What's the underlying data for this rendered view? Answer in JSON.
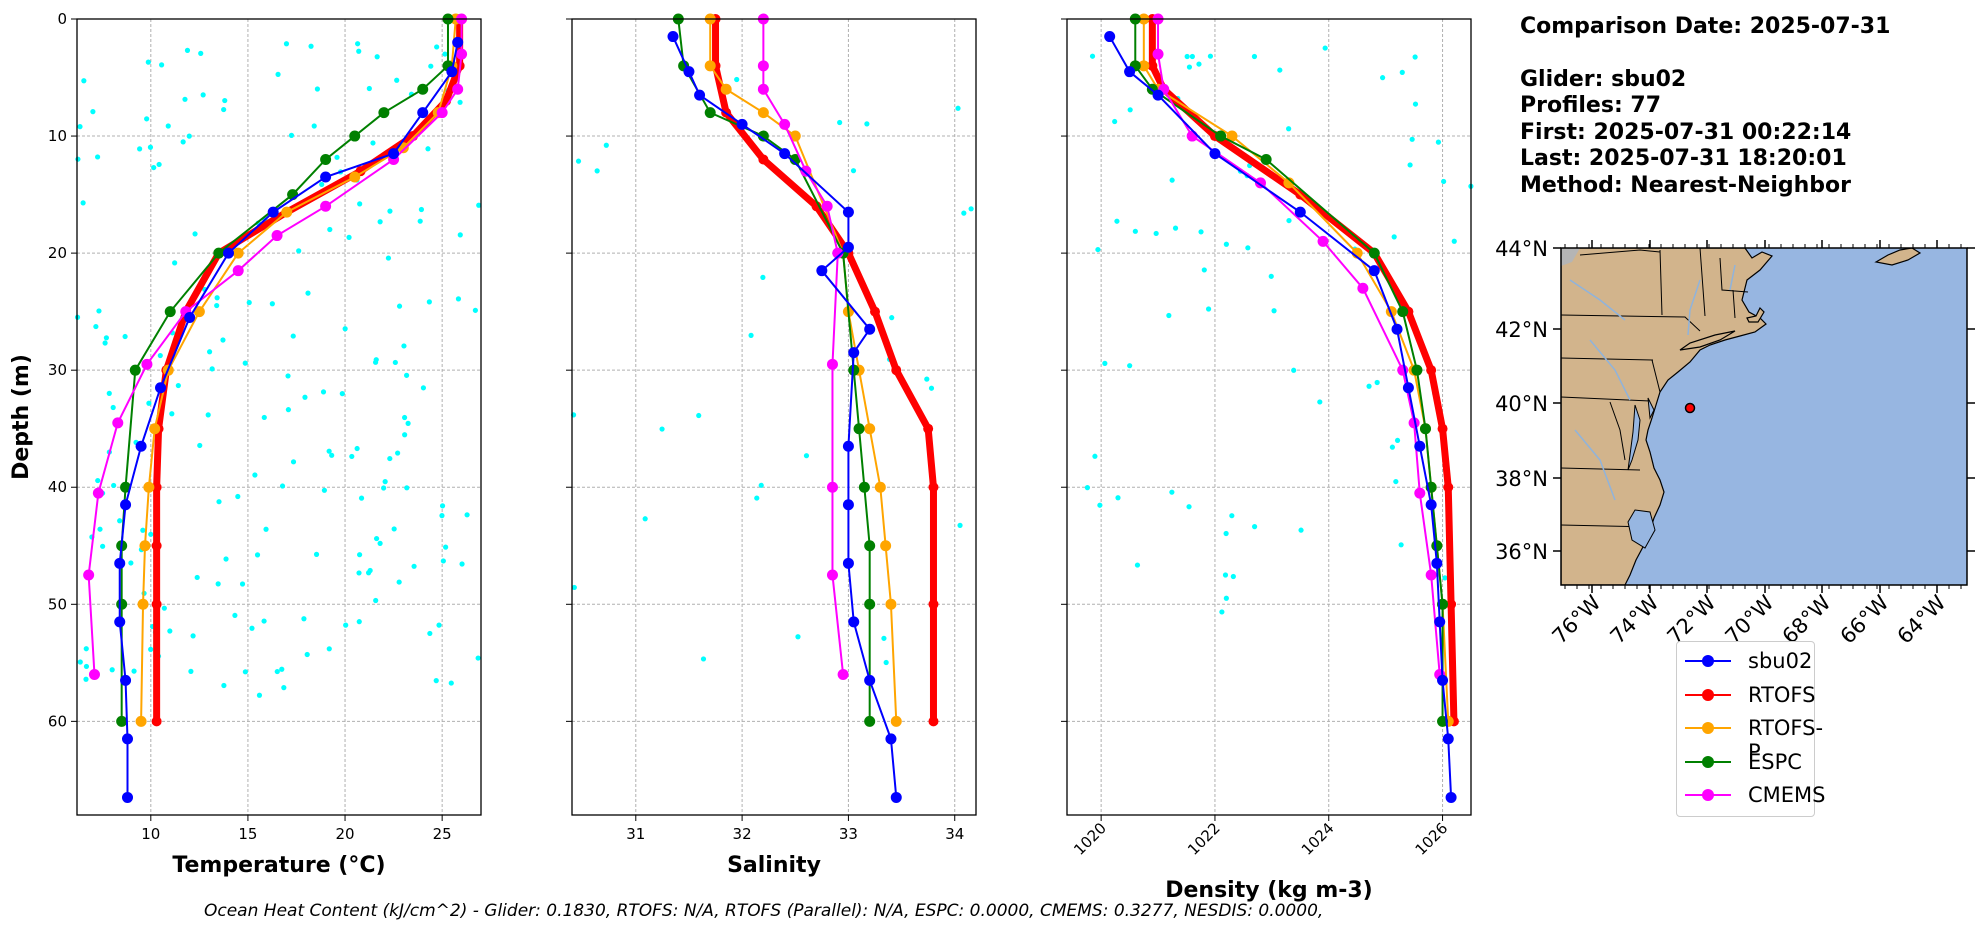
{
  "info": {
    "comparison_date": "Comparison Date: 2025-07-31",
    "glider": "Glider: sbu02",
    "profiles": "Profiles: 77",
    "first": "First: 2025-07-31 00:22:14",
    "last": "Last: 2025-07-31 18:20:01",
    "method": "Method: Nearest-Neighbor"
  },
  "footer": "Ocean Heat Content (kJ/cm^2) - Glider: 0.1830,  RTOFS: N/A,  RTOFS (Parallel): N/A,  ESPC: 0.0000,  CMEMS: 0.3277,  NESDIS: 0.0000,",
  "colors": {
    "scatter": "#00ffff",
    "sbu02": "#0000ff",
    "RTOFS": "#ff0000",
    "RTOFS-P": "#ffa500",
    "ESPC": "#008000",
    "CMEMS": "#ff00ff",
    "land": "#d2b48c",
    "ocean": "#97b6e1"
  },
  "legend": [
    {
      "name": "sbu02",
      "color": "#0000ff"
    },
    {
      "name": "RTOFS",
      "color": "#ff0000"
    },
    {
      "name": "RTOFS-P",
      "color": "#ffa500"
    },
    {
      "name": "ESPC",
      "color": "#008000"
    },
    {
      "name": "CMEMS",
      "color": "#ff00ff"
    }
  ],
  "map": {
    "lat_ticks": [
      "44°N",
      "42°N",
      "40°N",
      "38°N",
      "36°N"
    ],
    "lon_ticks": [
      "76°W",
      "74°W",
      "72°W",
      "70°W",
      "68°W",
      "66°W",
      "64°W"
    ],
    "glider_location": {
      "lon": -71.3,
      "lat": 39.85
    }
  },
  "chart_data": [
    {
      "type": "line",
      "xlabel": "Temperature (°C)",
      "ylabel": "Depth (m)",
      "xlim": [
        6.2,
        27
      ],
      "ylim": [
        68,
        0
      ],
      "xticks": [
        10,
        15,
        20,
        25
      ],
      "yticks": [
        0,
        10,
        20,
        30,
        40,
        50,
        60
      ],
      "grid": true,
      "y_inverted": true,
      "scatter_profile": {
        "series": "glider observations",
        "center": [
          [
            25.6,
            3
          ],
          [
            25,
            7
          ],
          [
            23,
            10
          ],
          [
            19,
            15
          ],
          [
            14.5,
            20
          ],
          [
            11.5,
            25
          ],
          [
            10,
            30
          ],
          [
            9,
            35
          ],
          [
            8.3,
            40
          ],
          [
            7.8,
            45
          ],
          [
            7.6,
            50
          ]
        ],
        "spread": [
          [
            0,
            0.8
          ],
          [
            10,
            2.5
          ],
          [
            20,
            3
          ],
          [
            30,
            2
          ],
          [
            50,
            1
          ]
        ]
      },
      "series": [
        {
          "name": "sbu02",
          "x": [
            25.8,
            25.5,
            24,
            22.5,
            19,
            16.3,
            14,
            12,
            10.5,
            9.5,
            8.7,
            8.4,
            8.4,
            8.7,
            8.8,
            8.8
          ],
          "y": [
            2,
            4.5,
            8,
            11.5,
            13.5,
            16.5,
            20,
            25.5,
            31.5,
            36.5,
            41.5,
            46.5,
            51.5,
            56.5,
            61.5,
            66.5
          ]
        },
        {
          "name": "RTOFS",
          "x": [
            25.9,
            25.9,
            25.2,
            23.5,
            20.8,
            17,
            13.5,
            11.8,
            10.8,
            10.4,
            10.3,
            10.3,
            10.3,
            10.3
          ],
          "y": [
            0,
            4,
            7,
            10,
            13,
            16.5,
            20,
            25,
            30,
            35,
            40,
            45,
            50,
            60
          ]
        },
        {
          "name": "RTOFS-P",
          "x": [
            25.7,
            25.5,
            24.8,
            23,
            20.5,
            17,
            14.5,
            12.5,
            10.9,
            10.2,
            9.9,
            9.7,
            9.6,
            9.5
          ],
          "y": [
            0,
            4,
            8,
            11,
            13.5,
            16.5,
            20,
            25,
            30,
            35,
            40,
            45,
            50,
            60
          ]
        },
        {
          "name": "ESPC",
          "x": [
            25.3,
            25.3,
            24,
            22,
            20.5,
            19,
            17.3,
            13.5,
            11,
            9.2,
            8.7,
            8.5,
            8.5,
            8.5
          ],
          "y": [
            0,
            4,
            6,
            8,
            10,
            12,
            15,
            20,
            25,
            30,
            40,
            45,
            50,
            60
          ]
        },
        {
          "name": "CMEMS",
          "x": [
            26,
            26,
            25.8,
            25,
            22.5,
            19,
            16.5,
            14.5,
            11.8,
            9.8,
            8.3,
            7.3,
            6.8,
            7.1
          ],
          "y": [
            0,
            3,
            6,
            8,
            12,
            16,
            18.5,
            21.5,
            25,
            29.5,
            34.5,
            40.5,
            47.5,
            56
          ]
        }
      ]
    },
    {
      "type": "line",
      "xlabel": "Salinity",
      "ylabel": "",
      "xlim": [
        30.4,
        34.2
      ],
      "ylim": [
        68,
        0
      ],
      "xticks": [
        31,
        32,
        33,
        34
      ],
      "yticks": [
        0,
        10,
        20,
        30,
        40,
        50,
        60
      ],
      "grid": true,
      "y_inverted": true,
      "scatter_profile": {
        "series": "glider observations",
        "center": [
          [
            31.5,
            3
          ],
          [
            31.8,
            7
          ],
          [
            32.3,
            12
          ],
          [
            32.9,
            17
          ],
          [
            33.2,
            22
          ],
          [
            33.1,
            27
          ],
          [
            33,
            35
          ],
          [
            32.95,
            45
          ],
          [
            32.95,
            53
          ]
        ],
        "spread": [
          [
            0,
            0.25
          ],
          [
            15,
            0.35
          ],
          [
            22,
            0.45
          ],
          [
            30,
            0.45
          ],
          [
            45,
            0.25
          ],
          [
            55,
            0.15
          ]
        ]
      },
      "series": [
        {
          "name": "sbu02",
          "x": [
            31.35,
            31.5,
            31.6,
            32,
            32.4,
            33,
            33,
            32.75,
            33.2,
            33.05,
            33.0,
            33.0,
            33.0,
            33.05,
            33.2,
            33.4,
            33.45
          ],
          "y": [
            1.5,
            4.5,
            6.5,
            9,
            11.5,
            16.5,
            19.5,
            21.5,
            26.5,
            28.5,
            36.5,
            41.5,
            46.5,
            51.5,
            56.5,
            61.5,
            66.5
          ]
        },
        {
          "name": "RTOFS",
          "x": [
            31.75,
            31.75,
            31.85,
            32.2,
            32.7,
            33.0,
            33.25,
            33.45,
            33.75,
            33.8,
            33.8,
            33.8
          ],
          "y": [
            0,
            4,
            8,
            12,
            16,
            20,
            25,
            30,
            35,
            40,
            50,
            60
          ]
        },
        {
          "name": "RTOFS-P",
          "x": [
            31.7,
            31.7,
            31.85,
            32.2,
            32.5,
            32.95,
            33,
            33.1,
            33.2,
            33.3,
            33.35,
            33.4,
            33.45
          ],
          "y": [
            0,
            4,
            6,
            8,
            10,
            20,
            25,
            30,
            35,
            40,
            45,
            50,
            60
          ]
        },
        {
          "name": "ESPC",
          "x": [
            31.4,
            31.45,
            31.7,
            32.2,
            32.5,
            32.95,
            33.05,
            33.1,
            33.15,
            33.2,
            33.2,
            33.2
          ],
          "y": [
            0,
            4,
            8,
            10,
            12,
            20,
            30,
            35,
            40,
            45,
            50,
            60
          ]
        },
        {
          "name": "CMEMS",
          "x": [
            32.2,
            32.2,
            32.2,
            32.4,
            32.6,
            32.8,
            32.9,
            32.85,
            32.85,
            32.85,
            32.95
          ],
          "y": [
            0,
            4,
            6,
            9,
            13,
            16,
            20,
            29.5,
            40,
            47.5,
            56
          ]
        }
      ]
    },
    {
      "type": "line",
      "xlabel": "Density (kg m-3)",
      "ylabel": "",
      "xlim": [
        1019.4,
        1026.5
      ],
      "ylim": [
        68,
        0
      ],
      "xticks": [
        1020,
        1022,
        1024,
        1026
      ],
      "yticks": [
        0,
        10,
        20,
        30,
        40,
        50,
        60
      ],
      "grid": true,
      "y_inverted": true,
      "scatter_profile": {
        "series": "glider observations",
        "center": [
          [
            1020.3,
            3
          ],
          [
            1020.8,
            7
          ],
          [
            1022,
            11
          ],
          [
            1023.5,
            16
          ],
          [
            1024.7,
            21
          ],
          [
            1025.3,
            26
          ],
          [
            1025.6,
            32
          ],
          [
            1025.8,
            40
          ],
          [
            1025.9,
            47
          ]
        ],
        "spread": [
          [
            0,
            0.35
          ],
          [
            10,
            0.7
          ],
          [
            20,
            0.55
          ],
          [
            30,
            0.3
          ],
          [
            50,
            0.15
          ]
        ]
      },
      "series": [
        {
          "name": "sbu02",
          "x": [
            1020.15,
            1020.5,
            1021,
            1022,
            1023.5,
            1024.8,
            1025.2,
            1025.4,
            1025.6,
            1025.8,
            1025.9,
            1025.95,
            1026.0,
            1026.1,
            1026.15
          ],
          "y": [
            1.5,
            4.5,
            6.5,
            11.5,
            16.5,
            21.5,
            26.5,
            31.5,
            36.5,
            41.5,
            46.5,
            51.5,
            56.5,
            61.5,
            66.5
          ]
        },
        {
          "name": "RTOFS",
          "x": [
            1020.9,
            1020.9,
            1021.1,
            1022,
            1023.5,
            1024.8,
            1025.4,
            1025.8,
            1026.0,
            1026.1,
            1026.15,
            1026.2
          ],
          "y": [
            0,
            4,
            6,
            10,
            15,
            20,
            25,
            30,
            35,
            40,
            50,
            60
          ]
        },
        {
          "name": "RTOFS-P",
          "x": [
            1020.75,
            1020.75,
            1021,
            1022.3,
            1023.3,
            1024.5,
            1025.1,
            1025.5,
            1025.7,
            1025.8,
            1025.9,
            1026.0,
            1026.1
          ],
          "y": [
            0,
            4,
            6,
            10,
            14,
            20,
            25,
            30,
            35,
            40,
            45,
            50,
            60
          ]
        },
        {
          "name": "ESPC",
          "x": [
            1020.6,
            1020.6,
            1020.9,
            1022.1,
            1022.9,
            1024.8,
            1025.3,
            1025.55,
            1025.7,
            1025.8,
            1025.9,
            1026.0,
            1026.0
          ],
          "y": [
            0,
            4,
            6,
            10,
            12,
            20,
            25,
            30,
            35,
            40,
            45,
            50,
            60
          ]
        },
        {
          "name": "CMEMS",
          "x": [
            1021.0,
            1021.0,
            1021.1,
            1021.6,
            1022.8,
            1023.9,
            1024.6,
            1025.3,
            1025.5,
            1025.6,
            1025.8,
            1025.95
          ],
          "y": [
            0,
            3,
            6,
            10,
            14,
            19,
            23,
            30,
            34.5,
            40.5,
            47.5,
            56
          ]
        }
      ]
    }
  ]
}
